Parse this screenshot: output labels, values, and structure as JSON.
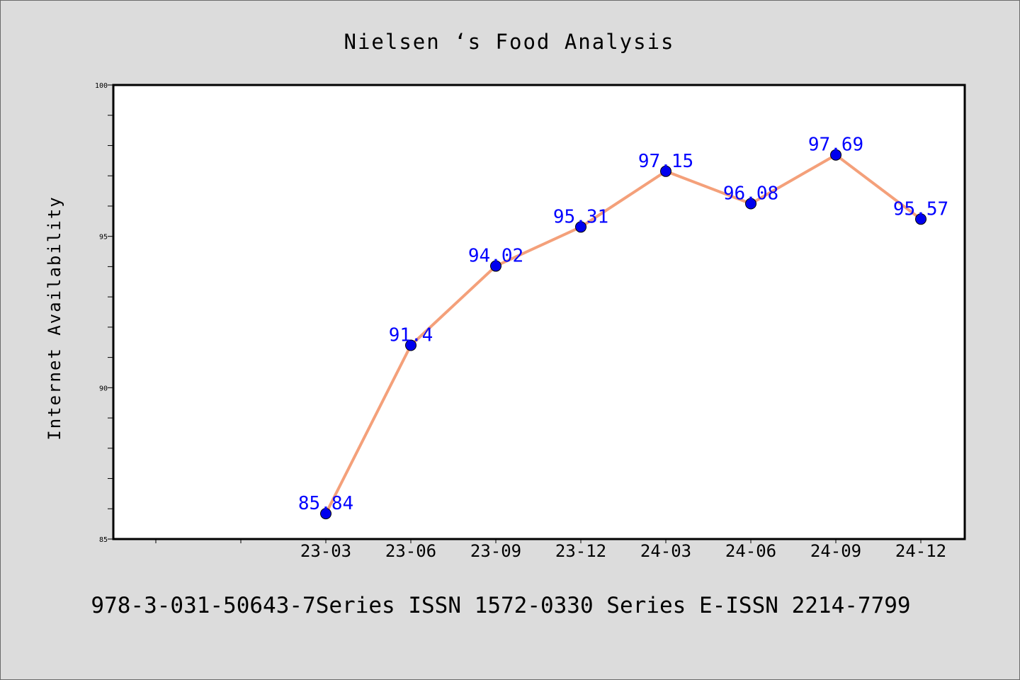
{
  "chart_data": {
    "type": "line",
    "title": "Nielsen ‘s Food Analysis",
    "xlabel": "",
    "ylabel": "Internet Availability",
    "categories": [
      "23-03",
      "23-06",
      "23-09",
      "23-12",
      "24-03",
      "24-06",
      "24-09",
      "24-12"
    ],
    "series": [
      {
        "values": [
          85.84,
          91.4,
          94.02,
          95.31,
          97.15,
          96.08,
          97.69,
          95.57
        ]
      }
    ],
    "data_labels": [
      "85.84",
      "91.4",
      "94.02",
      "95.31",
      "97.15",
      "96.08",
      "97.69",
      "95.57"
    ],
    "ylim": [
      85,
      100
    ],
    "y_ticks": [
      "85",
      "90",
      "95",
      "100"
    ],
    "grid": false,
    "line_color": "#f4a07a",
    "marker_color": "#0000ee",
    "label_color": "#0000ff"
  },
  "footer": {
    "text": "978-3-031-50643-7Series ISSN 1572-0330 Series E-ISSN 2214-7799"
  }
}
